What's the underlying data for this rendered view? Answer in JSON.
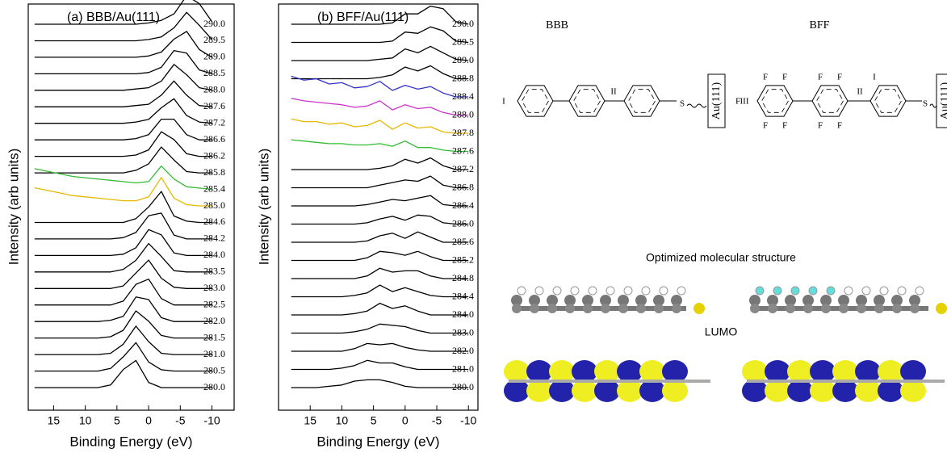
{
  "chart_data": [
    {
      "type": "line",
      "title": "(a) BBB/Au(111)",
      "x_label": "Binding Energy (eV)",
      "y_label": "Intensity (arb units)",
      "xlim": [
        19,
        -13.5
      ],
      "xticks": [
        15,
        10,
        5,
        0,
        -5,
        -10
      ],
      "x": [
        18,
        16,
        14,
        12,
        10,
        8,
        6,
        4,
        2,
        0,
        -2,
        -4,
        -6,
        -8,
        -10
      ],
      "series": [
        {
          "name": "290.0",
          "color": "#000000",
          "values": [
            0,
            0,
            0,
            0,
            0,
            0,
            0,
            0,
            0,
            0.1,
            0.3,
            0.8,
            2.2,
            1.6,
            0.2
          ]
        },
        {
          "name": "289.5",
          "color": "#000000",
          "values": [
            0,
            0,
            0,
            0,
            0,
            0,
            0,
            0,
            0,
            0.1,
            0.3,
            1.0,
            2.2,
            1.2,
            0.1
          ]
        },
        {
          "name": "289.0",
          "color": "#000000",
          "values": [
            0,
            0,
            0,
            0,
            0,
            0,
            0,
            0,
            0,
            0.1,
            0.4,
            1.4,
            2.0,
            0.6,
            0
          ]
        },
        {
          "name": "288.5",
          "color": "#000000",
          "values": [
            0,
            0,
            0,
            0,
            0,
            0,
            0,
            0,
            0,
            0.1,
            0.5,
            1.8,
            1.6,
            0.3,
            0
          ]
        },
        {
          "name": "288.0",
          "color": "#000000",
          "values": [
            0,
            0,
            0,
            0,
            0,
            0,
            0,
            0,
            0.1,
            0.2,
            0.7,
            2.0,
            1.2,
            0.2,
            0
          ]
        },
        {
          "name": "287.6",
          "color": "#000000",
          "values": [
            0,
            0,
            0,
            0,
            0,
            0,
            0,
            0,
            0.1,
            0.2,
            0.9,
            2.0,
            0.9,
            0.1,
            0
          ]
        },
        {
          "name": "287.2",
          "color": "#000000",
          "values": [
            0,
            0,
            0,
            0,
            0,
            0,
            0,
            0,
            0.1,
            0.3,
            1.2,
            1.9,
            0.6,
            0.1,
            0
          ]
        },
        {
          "name": "286.6",
          "color": "#000000",
          "values": [
            0,
            0,
            0,
            0,
            0,
            0,
            0,
            0,
            0.1,
            0.4,
            1.6,
            1.6,
            0.4,
            0,
            0
          ]
        },
        {
          "name": "286.2",
          "color": "#000000",
          "values": [
            0,
            0,
            0,
            0,
            0,
            0,
            0,
            0,
            0.1,
            0.5,
            1.9,
            1.3,
            0.2,
            0,
            0
          ]
        },
        {
          "name": "285.8",
          "color": "#000000",
          "values": [
            0,
            0,
            0,
            0,
            0,
            0,
            0,
            0,
            0.2,
            0.7,
            2.0,
            1.0,
            0.1,
            0,
            0
          ]
        },
        {
          "name": "285.4",
          "color": "#33bb33",
          "values": [
            1.6,
            1.4,
            1.2,
            1.0,
            0.9,
            0.8,
            0.7,
            0.6,
            0.5,
            0.6,
            1.8,
            0.8,
            0.2,
            0.1,
            0
          ]
        },
        {
          "name": "285.0",
          "color": "#e6b800",
          "values": [
            1.4,
            1.2,
            1.0,
            0.8,
            0.7,
            0.6,
            0.5,
            0.4,
            0.4,
            0.7,
            2.2,
            0.6,
            0.1,
            0,
            0
          ]
        },
        {
          "name": "284.6",
          "color": "#000000",
          "values": [
            0,
            0,
            0,
            0,
            0,
            0,
            0,
            0,
            0.3,
            1.2,
            2.4,
            0.5,
            0.1,
            0,
            0
          ]
        },
        {
          "name": "284.2",
          "color": "#000000",
          "values": [
            0,
            0,
            0,
            0,
            0,
            0,
            0,
            0.1,
            0.5,
            1.8,
            2.0,
            0.3,
            0,
            0,
            0
          ]
        },
        {
          "name": "284.0",
          "color": "#000000",
          "values": [
            0,
            0,
            0,
            0,
            0,
            0,
            0,
            0.1,
            0.6,
            2.0,
            1.6,
            0.2,
            0,
            0,
            0
          ]
        },
        {
          "name": "283.5",
          "color": "#000000",
          "values": [
            0,
            0,
            0,
            0,
            0,
            0,
            0,
            0.2,
            0.9,
            2.2,
            1.2,
            0.1,
            0,
            0,
            0
          ]
        },
        {
          "name": "283.0",
          "color": "#000000",
          "values": [
            0,
            0,
            0,
            0,
            0,
            0,
            0,
            0.2,
            1.2,
            2.2,
            0.8,
            0.1,
            0,
            0,
            0
          ]
        },
        {
          "name": "282.5",
          "color": "#000000",
          "values": [
            0,
            0,
            0,
            0,
            0,
            0,
            0,
            0.3,
            1.6,
            2.0,
            0.5,
            0,
            0,
            0,
            0
          ]
        },
        {
          "name": "282.0",
          "color": "#000000",
          "values": [
            0,
            0,
            0,
            0,
            0,
            0,
            0.1,
            0.4,
            1.9,
            1.7,
            0.3,
            0,
            0,
            0,
            0
          ]
        },
        {
          "name": "281.5",
          "color": "#000000",
          "values": [
            0,
            0,
            0,
            0,
            0,
            0,
            0.1,
            0.6,
            2.1,
            1.3,
            0.2,
            0,
            0,
            0,
            0
          ]
        },
        {
          "name": "281.0",
          "color": "#000000",
          "values": [
            0,
            0,
            0,
            0,
            0,
            0,
            0.1,
            0.8,
            2.2,
            1.0,
            0.1,
            0,
            0,
            0,
            0
          ]
        },
        {
          "name": "280.5",
          "color": "#000000",
          "values": [
            0,
            0,
            0,
            0,
            0,
            0,
            0.2,
            1.1,
            2.2,
            0.7,
            0.1,
            0,
            0,
            0,
            0
          ]
        },
        {
          "name": "280.0",
          "color": "#000000",
          "values": [
            0,
            0,
            0,
            0,
            0,
            0,
            0.2,
            1.4,
            2.1,
            0.4,
            0,
            0,
            0,
            0,
            0
          ]
        }
      ]
    },
    {
      "type": "line",
      "title": "(b) BFF/Au(111)",
      "x_label": "Binding Energy (eV)",
      "y_label": "Intensity (arb units)",
      "xlim": [
        20,
        -11.5
      ],
      "xticks": [
        15,
        10,
        5,
        0,
        -5,
        -10
      ],
      "x": [
        18,
        16,
        14,
        12,
        10,
        8,
        6,
        4,
        2,
        0,
        -2,
        -4,
        -6,
        -8,
        -10
      ],
      "series": [
        {
          "name": "290.0",
          "color": "#000000",
          "values": [
            0,
            0,
            0,
            0,
            0,
            0,
            0,
            0,
            0.1,
            0.8,
            0.8,
            1.4,
            1.2,
            0.2,
            0
          ]
        },
        {
          "name": "289.5",
          "color": "#000000",
          "values": [
            0,
            0,
            0,
            0,
            0,
            0,
            0,
            0,
            0.1,
            0.8,
            0.7,
            1.2,
            0.9,
            0.1,
            0
          ]
        },
        {
          "name": "289.0",
          "color": "#000000",
          "values": [
            0,
            0,
            0,
            0,
            0,
            0,
            0,
            0.1,
            0.2,
            0.9,
            0.6,
            1.1,
            0.6,
            0.1,
            0
          ]
        },
        {
          "name": "288.8",
          "color": "#000000",
          "values": [
            0,
            0,
            0,
            0,
            0,
            0,
            0,
            0.1,
            0.3,
            0.9,
            0.6,
            1.0,
            0.4,
            0,
            0
          ]
        },
        {
          "name": "288.4",
          "color": "#3333cc",
          "values": [
            1.6,
            1.3,
            1.4,
            1.0,
            1.1,
            0.7,
            0.8,
            1.2,
            0.5,
            0.9,
            0.6,
            0.8,
            0.3,
            0,
            0
          ]
        },
        {
          "name": "288.0",
          "color": "#cc33cc",
          "values": [
            1.3,
            1.1,
            1.0,
            0.9,
            0.8,
            0.6,
            0.7,
            1.1,
            0.4,
            0.8,
            0.5,
            0.6,
            0.2,
            0,
            0
          ]
        },
        {
          "name": "287.8",
          "color": "#e6b800",
          "values": [
            1.1,
            0.9,
            0.9,
            0.7,
            0.8,
            0.5,
            0.6,
            1.0,
            0.3,
            0.8,
            0.4,
            0.5,
            0.1,
            0,
            0
          ]
        },
        {
          "name": "287.6",
          "color": "#33bb33",
          "values": [
            0.9,
            0.8,
            0.7,
            0.6,
            0.6,
            0.5,
            0.5,
            0.6,
            0.4,
            0.8,
            0.3,
            0.3,
            0.1,
            0,
            0
          ]
        },
        {
          "name": "287.2",
          "color": "#000000",
          "values": [
            0,
            0,
            0,
            0,
            0,
            0,
            0,
            0.1,
            0.3,
            0.8,
            0.5,
            0.9,
            0.3,
            0,
            0
          ]
        },
        {
          "name": "286.8",
          "color": "#000000",
          "values": [
            0,
            0,
            0,
            0,
            0,
            0,
            0,
            0.2,
            0.4,
            0.6,
            0.5,
            0.9,
            0.2,
            0,
            0
          ]
        },
        {
          "name": "286.4",
          "color": "#000000",
          "values": [
            0,
            0,
            0,
            0,
            0,
            0,
            0.1,
            0.3,
            0.5,
            0.4,
            0.6,
            0.8,
            0.1,
            0,
            0
          ]
        },
        {
          "name": "286.0",
          "color": "#000000",
          "values": [
            0,
            0,
            0,
            0,
            0,
            0,
            0.1,
            0.4,
            0.6,
            0.3,
            0.7,
            0.6,
            0.1,
            0,
            0
          ]
        },
        {
          "name": "285.6",
          "color": "#000000",
          "values": [
            0,
            0,
            0,
            0,
            0,
            0,
            0.1,
            0.5,
            0.7,
            0.3,
            0.8,
            0.4,
            0,
            0,
            0
          ]
        },
        {
          "name": "285.2",
          "color": "#000000",
          "values": [
            0,
            0,
            0,
            0,
            0,
            0,
            0.2,
            0.7,
            0.6,
            0.4,
            0.7,
            0.3,
            0,
            0,
            0
          ]
        },
        {
          "name": "284.8",
          "color": "#000000",
          "values": [
            0,
            0,
            0,
            0,
            0,
            0,
            0.2,
            0.8,
            0.5,
            0.6,
            0.6,
            0.2,
            0,
            0,
            0
          ]
        },
        {
          "name": "284.4",
          "color": "#000000",
          "values": [
            0,
            0,
            0,
            0,
            0,
            0.1,
            0.3,
            0.9,
            0.4,
            0.7,
            0.4,
            0.1,
            0,
            0,
            0
          ]
        },
        {
          "name": "284.0",
          "color": "#000000",
          "values": [
            0,
            0,
            0,
            0,
            0,
            0.1,
            0.3,
            0.9,
            0.5,
            0.7,
            0.3,
            0,
            0,
            0,
            0
          ]
        },
        {
          "name": "283.0",
          "color": "#000000",
          "values": [
            0,
            0,
            0,
            0,
            0,
            0.1,
            0.3,
            0.7,
            0.6,
            0.5,
            0.2,
            0,
            0,
            0,
            0
          ]
        },
        {
          "name": "282.0",
          "color": "#000000",
          "values": [
            0,
            0,
            0,
            0,
            0,
            0.2,
            0.6,
            0.5,
            0.6,
            0.3,
            0.1,
            0,
            0,
            0,
            0
          ]
        },
        {
          "name": "281.0",
          "color": "#000000",
          "values": [
            0,
            0,
            0,
            0,
            0.1,
            0.3,
            0.7,
            0.5,
            0.5,
            0.2,
            0,
            0,
            0,
            0,
            0
          ]
        },
        {
          "name": "280.0",
          "color": "#000000",
          "values": [
            0,
            0,
            0,
            0.1,
            0.2,
            0.5,
            0.6,
            0.6,
            0.4,
            0.1,
            0,
            0,
            0,
            0,
            0
          ]
        }
      ]
    }
  ],
  "diagram": {
    "bbb": "BBB",
    "bff": "BFF",
    "optimized": "Optimized molecular structure",
    "lumo": "LUMO",
    "substrate": "Au(111)",
    "site_1": "I",
    "site_2": "II",
    "site_3": "III",
    "sulfur": "S",
    "fluorine": "F"
  }
}
